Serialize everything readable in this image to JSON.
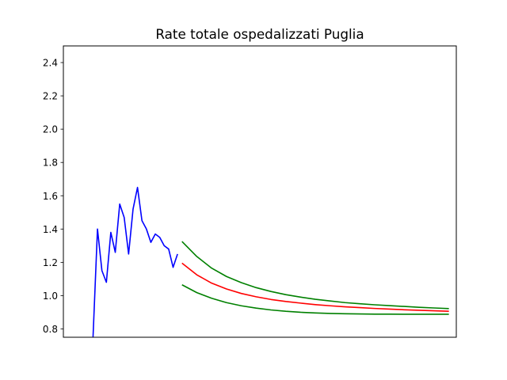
{
  "chart_data": {
    "type": "line",
    "title": "Rate totale ospedalizzati Puglia",
    "xlabel": "",
    "ylabel": "",
    "ylim": [
      0.75,
      2.5
    ],
    "xlim": [
      -0.5,
      26
    ],
    "x_ticks_shown": false,
    "grid": false,
    "y_ticks": [
      0.8,
      1.0,
      1.2,
      1.4,
      1.6,
      1.8,
      2.0,
      2.2,
      2.4
    ],
    "y_tick_labels": [
      "0.8",
      "1.0",
      "1.2",
      "1.4",
      "1.6",
      "1.8",
      "2.0",
      "2.2",
      "2.4"
    ],
    "colors": {
      "observed": "#0000ff",
      "forecast": "#ff0000",
      "bounds": "#008000"
    },
    "series": [
      {
        "key": "observed",
        "x": [
          1.5,
          1.8,
          2.1,
          2.4,
          2.7,
          3.0,
          3.3,
          3.6,
          3.9,
          4.2,
          4.5,
          4.8,
          5.1,
          5.4,
          5.7,
          6.0,
          6.3,
          6.6,
          6.9,
          7.2
        ],
        "y": [
          0.75,
          1.4,
          1.15,
          1.08,
          1.38,
          1.26,
          1.55,
          1.47,
          1.25,
          1.52,
          1.65,
          1.45,
          1.4,
          1.32,
          1.37,
          1.35,
          1.3,
          1.28,
          1.17,
          1.25
        ]
      },
      {
        "key": "upper",
        "x": [
          7.5,
          8.5,
          9.5,
          10.5,
          11.5,
          12.5,
          13.5,
          14.5,
          15.5,
          16.5,
          17.5,
          18.5,
          19.5,
          20.5,
          21.5,
          22.5,
          23.5,
          24.5,
          25.5
        ],
        "y": [
          1.325,
          1.235,
          1.165,
          1.115,
          1.078,
          1.048,
          1.025,
          1.006,
          0.991,
          0.978,
          0.968,
          0.958,
          0.951,
          0.945,
          0.94,
          0.935,
          0.93,
          0.926,
          0.922
        ]
      },
      {
        "key": "forecast",
        "x": [
          7.5,
          8.5,
          9.5,
          10.5,
          11.5,
          12.5,
          13.5,
          14.5,
          15.5,
          16.5,
          17.5,
          18.5,
          19.5,
          20.5,
          21.5,
          22.5,
          23.5,
          24.5,
          25.5
        ],
        "y": [
          1.195,
          1.125,
          1.075,
          1.04,
          1.013,
          0.993,
          0.977,
          0.965,
          0.955,
          0.946,
          0.939,
          0.933,
          0.928,
          0.923,
          0.919,
          0.915,
          0.912,
          0.909,
          0.906
        ]
      },
      {
        "key": "lower",
        "x": [
          7.5,
          8.5,
          9.5,
          10.5,
          11.5,
          12.5,
          13.5,
          14.5,
          15.5,
          16.5,
          17.5,
          18.5,
          19.5,
          20.5,
          21.5,
          22.5,
          23.5,
          24.5,
          25.5
        ],
        "y": [
          1.065,
          1.018,
          0.984,
          0.958,
          0.939,
          0.925,
          0.914,
          0.906,
          0.9,
          0.896,
          0.893,
          0.891,
          0.89,
          0.889,
          0.889,
          0.888,
          0.888,
          0.888,
          0.888
        ]
      }
    ]
  }
}
